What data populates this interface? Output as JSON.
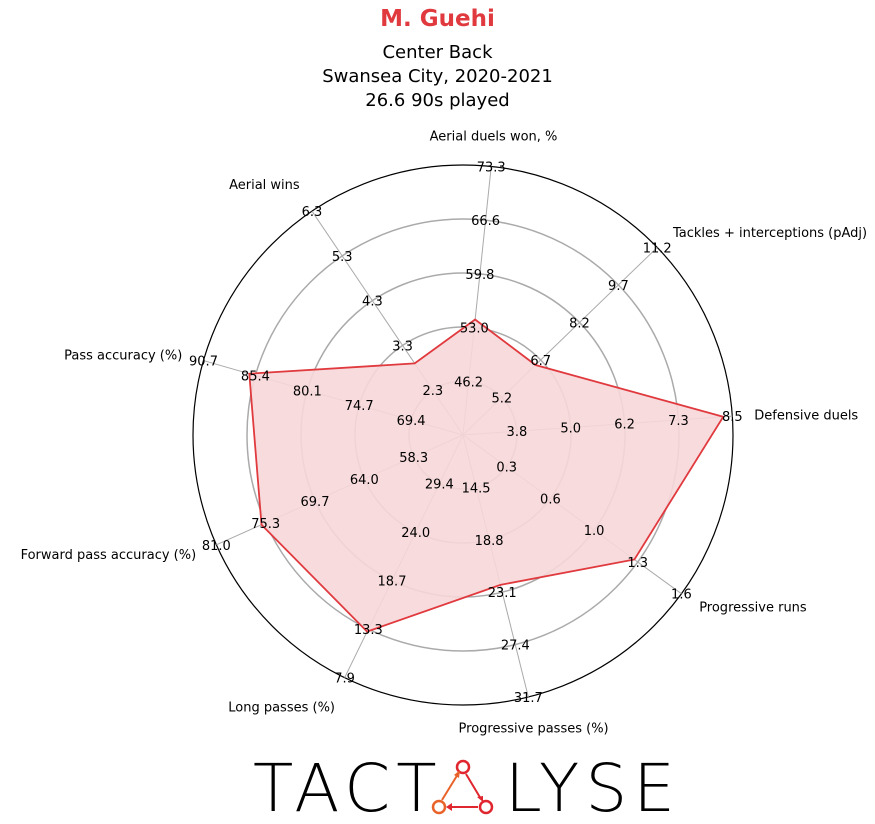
{
  "header": {
    "player": "M. Guehi",
    "position": "Center Back",
    "team_season": "Swansea City, 2020-2021",
    "minutes": "26.6 90s played"
  },
  "colors": {
    "accent": "#e0393e",
    "fill": "#f7d7d8",
    "grid": "#aaaaaa",
    "logo_dark": "#000000",
    "logo_red": "#e0262f",
    "logo_orange": "#e8622a"
  },
  "logo": {
    "text_left": "TACT",
    "text_right": "LYSE"
  },
  "chart_data": {
    "type": "radar",
    "title": "M. Guehi",
    "grid": true,
    "axes": [
      {
        "label": "Defensive duels",
        "ticks": [
          "3.8",
          "5.0",
          "6.2",
          "7.3",
          "8.5"
        ],
        "value": 8.3
      },
      {
        "label": "Tackles + interceptions (pAdj)",
        "ticks": [
          "5.2",
          "6.7",
          "8.2",
          "9.7",
          "11.2"
        ],
        "value": 6.5
      },
      {
        "label": "Aerial duels won, %",
        "ticks": [
          "46.2",
          "53.0",
          "59.8",
          "66.6",
          "73.3"
        ],
        "value": 54.0
      },
      {
        "label": "Aerial wins",
        "ticks": [
          "2.3",
          "3.3",
          "4.3",
          "5.3",
          "6.3"
        ],
        "value": 2.9
      },
      {
        "label": "Pass accuracy (%)",
        "ticks": [
          "69.4",
          "74.7",
          "80.1",
          "85.4",
          "90.7"
        ],
        "value": 86.0
      },
      {
        "label": "Forward pass accuracy (%)",
        "ticks": [
          "58.3",
          "64.0",
          "69.7",
          "75.3",
          "81.0"
        ],
        "value": 75.8
      },
      {
        "label": "Long passes (%)",
        "ticks": [
          "29.4",
          "24.0",
          "18.7",
          "13.3",
          "7.9"
        ],
        "value": 13.0
      },
      {
        "label": "Progressive passes (%)",
        "ticks": [
          "14.5",
          "18.8",
          "23.1",
          "27.4",
          "31.7"
        ],
        "value": 22.5
      },
      {
        "label": "Progressive runs",
        "ticks": [
          "0.3",
          "0.6",
          "1.0",
          "1.3",
          "1.6"
        ],
        "value": 1.25
      }
    ]
  }
}
